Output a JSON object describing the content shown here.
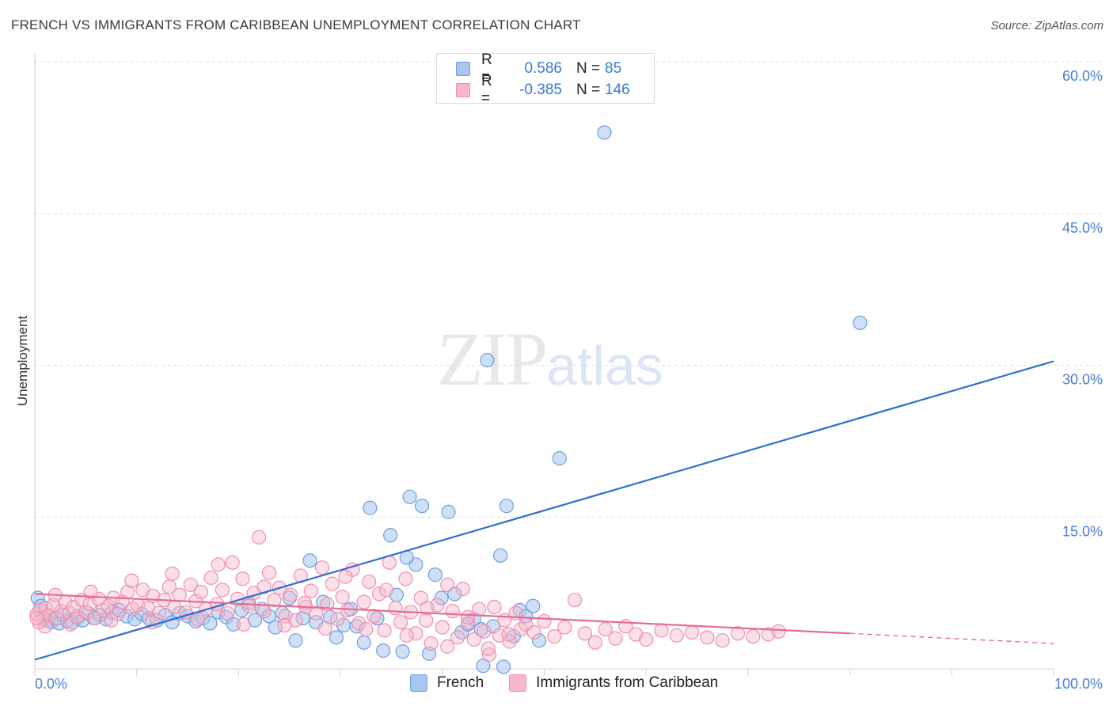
{
  "header": {
    "title": "FRENCH VS IMMIGRANTS FROM CARIBBEAN UNEMPLOYMENT CORRELATION CHART",
    "source": "Source: ZipAtlas.com"
  },
  "watermark": {
    "zip": "ZIP",
    "atlas": "atlas"
  },
  "legend": {
    "french": {
      "r_label": "R =",
      "r_value": "0.586",
      "n_label": "N =",
      "n_value": "85"
    },
    "caribbean": {
      "r_label": "R =",
      "r_value": "-0.385",
      "n_label": "N =",
      "n_value": "146"
    }
  },
  "colors": {
    "french_fill": "#a8c6ef",
    "french_stroke": "#6f9fdc",
    "french_line": "#2f6fcf",
    "caribbean_fill": "#f7b8cb",
    "caribbean_stroke": "#ee8fae",
    "caribbean_line": "#e86a94",
    "grid": "#dddddd",
    "tick_text": "#4a7fd4"
  },
  "chart_data": {
    "type": "scatter",
    "title": "FRENCH VS IMMIGRANTS FROM CARIBBEAN UNEMPLOYMENT CORRELATION CHART",
    "xlabel": "",
    "ylabel": "Unemployment",
    "xlim": [
      0,
      100
    ],
    "ylim": [
      0,
      60
    ],
    "x_ticks": [
      "0.0%",
      "100.0%"
    ],
    "y_ticks": [
      {
        "value": 15,
        "label": "15.0%"
      },
      {
        "value": 30,
        "label": "30.0%"
      },
      {
        "value": 45,
        "label": "45.0%"
      },
      {
        "value": 60,
        "label": "60.0%"
      }
    ],
    "grid": "horizontal dashed",
    "legend_position": "top-center",
    "series": [
      {
        "name": "French",
        "r": 0.586,
        "n": 85,
        "trend": {
          "x": [
            0,
            100
          ],
          "y": [
            0.9,
            30.4
          ]
        },
        "points": [
          [
            0.3,
            7.0
          ],
          [
            0.6,
            6.2
          ],
          [
            0.9,
            5.1
          ],
          [
            1.2,
            4.8
          ],
          [
            1.6,
            4.6
          ],
          [
            2.0,
            5.0
          ],
          [
            2.4,
            4.5
          ],
          [
            2.8,
            5.3
          ],
          [
            3.2,
            4.7
          ],
          [
            3.7,
            4.6
          ],
          [
            4.2,
            5.0
          ],
          [
            4.7,
            4.8
          ],
          [
            5.2,
            5.5
          ],
          [
            5.8,
            5.0
          ],
          [
            6.4,
            5.3
          ],
          [
            7.0,
            4.9
          ],
          [
            7.6,
            5.6
          ],
          [
            8.3,
            5.8
          ],
          [
            9.0,
            5.2
          ],
          [
            9.8,
            4.9
          ],
          [
            10.5,
            5.4
          ],
          [
            11.2,
            5.0
          ],
          [
            12.0,
            4.8
          ],
          [
            12.8,
            5.3
          ],
          [
            13.5,
            4.6
          ],
          [
            14.2,
            5.5
          ],
          [
            15.0,
            5.2
          ],
          [
            15.8,
            4.7
          ],
          [
            16.5,
            5.0
          ],
          [
            17.2,
            4.5
          ],
          [
            18.0,
            5.6
          ],
          [
            18.8,
            5.1
          ],
          [
            19.5,
            4.4
          ],
          [
            20.3,
            5.8
          ],
          [
            21.0,
            6.5
          ],
          [
            21.6,
            4.8
          ],
          [
            22.3,
            5.9
          ],
          [
            23.0,
            5.2
          ],
          [
            23.6,
            4.1
          ],
          [
            24.3,
            5.5
          ],
          [
            25.0,
            7.0
          ],
          [
            25.6,
            2.8
          ],
          [
            26.3,
            5.0
          ],
          [
            27.0,
            10.7
          ],
          [
            27.6,
            4.6
          ],
          [
            28.3,
            6.6
          ],
          [
            29.0,
            5.1
          ],
          [
            29.6,
            3.1
          ],
          [
            30.3,
            4.3
          ],
          [
            31.0,
            5.9
          ],
          [
            31.6,
            4.2
          ],
          [
            32.3,
            2.6
          ],
          [
            32.9,
            15.9
          ],
          [
            33.6,
            5.0
          ],
          [
            34.2,
            1.8
          ],
          [
            34.9,
            13.2
          ],
          [
            35.5,
            7.3
          ],
          [
            36.1,
            1.7
          ],
          [
            36.8,
            17.0
          ],
          [
            37.4,
            10.3
          ],
          [
            38.0,
            16.1
          ],
          [
            38.7,
            1.5
          ],
          [
            39.3,
            9.3
          ],
          [
            39.9,
            7.0
          ],
          [
            40.6,
            15.5
          ],
          [
            41.2,
            7.4
          ],
          [
            41.9,
            3.6
          ],
          [
            42.5,
            4.4
          ],
          [
            43.1,
            4.9
          ],
          [
            43.8,
            3.9
          ],
          [
            44.4,
            30.5
          ],
          [
            45.0,
            4.2
          ],
          [
            45.7,
            11.2
          ],
          [
            46.3,
            16.1
          ],
          [
            47.0,
            3.2
          ],
          [
            47.6,
            5.8
          ],
          [
            48.2,
            5.2
          ],
          [
            48.9,
            6.2
          ],
          [
            49.5,
            2.8
          ],
          [
            44.0,
            0.3
          ],
          [
            36.5,
            11.0
          ],
          [
            46.0,
            0.2
          ],
          [
            55.9,
            53.0
          ],
          [
            51.5,
            20.8
          ],
          [
            81.0,
            34.2
          ]
        ]
      },
      {
        "name": "Immigrants from Caribbean",
        "r": -0.385,
        "n": 146,
        "trend": {
          "x": [
            0,
            80
          ],
          "y": [
            7.4,
            3.5
          ]
        },
        "trend_dashed": {
          "x": [
            80,
            100
          ],
          "y": [
            3.5,
            2.5
          ]
        },
        "points": [
          [
            0.2,
            5.4
          ],
          [
            0.5,
            5.8
          ],
          [
            0.8,
            4.9
          ],
          [
            1.1,
            6.0
          ],
          [
            1.4,
            5.3
          ],
          [
            1.8,
            6.3
          ],
          [
            2.2,
            5.0
          ],
          [
            2.6,
            5.7
          ],
          [
            3.0,
            6.6
          ],
          [
            3.4,
            5.5
          ],
          [
            3.8,
            6.1
          ],
          [
            4.2,
            5.2
          ],
          [
            4.6,
            6.8
          ],
          [
            5.0,
            5.6
          ],
          [
            5.4,
            6.4
          ],
          [
            5.9,
            5.0
          ],
          [
            6.3,
            6.9
          ],
          [
            6.7,
            5.8
          ],
          [
            7.2,
            6.2
          ],
          [
            7.7,
            7.0
          ],
          [
            8.1,
            5.4
          ],
          [
            8.6,
            6.6
          ],
          [
            9.1,
            7.6
          ],
          [
            9.6,
            5.9
          ],
          [
            10.1,
            6.3
          ],
          [
            10.6,
            7.8
          ],
          [
            11.1,
            6.0
          ],
          [
            11.6,
            7.2
          ],
          [
            12.2,
            5.5
          ],
          [
            12.7,
            6.8
          ],
          [
            13.2,
            8.1
          ],
          [
            13.7,
            6.1
          ],
          [
            14.2,
            7.3
          ],
          [
            14.8,
            5.6
          ],
          [
            15.3,
            8.3
          ],
          [
            15.8,
            6.7
          ],
          [
            16.3,
            7.6
          ],
          [
            16.8,
            5.9
          ],
          [
            17.3,
            9.0
          ],
          [
            17.9,
            6.4
          ],
          [
            18.4,
            7.8
          ],
          [
            18.9,
            5.5
          ],
          [
            19.4,
            10.5
          ],
          [
            19.9,
            6.9
          ],
          [
            20.4,
            8.9
          ],
          [
            21.0,
            6.2
          ],
          [
            21.5,
            7.5
          ],
          [
            22.0,
            13.0
          ],
          [
            22.5,
            5.7
          ],
          [
            23.0,
            9.5
          ],
          [
            23.5,
            6.8
          ],
          [
            24.0,
            8.0
          ],
          [
            24.6,
            5.2
          ],
          [
            25.1,
            7.3
          ],
          [
            25.6,
            4.8
          ],
          [
            26.1,
            9.2
          ],
          [
            26.6,
            6.1
          ],
          [
            27.1,
            7.7
          ],
          [
            27.6,
            5.5
          ],
          [
            28.2,
            10.0
          ],
          [
            28.7,
            6.4
          ],
          [
            29.2,
            8.4
          ],
          [
            29.7,
            4.9
          ],
          [
            30.2,
            7.1
          ],
          [
            30.7,
            5.8
          ],
          [
            31.2,
            9.8
          ],
          [
            31.8,
            4.5
          ],
          [
            32.3,
            6.6
          ],
          [
            32.8,
            8.6
          ],
          [
            33.3,
            5.2
          ],
          [
            33.8,
            7.4
          ],
          [
            34.3,
            3.8
          ],
          [
            34.8,
            10.5
          ],
          [
            35.4,
            6.0
          ],
          [
            35.9,
            4.6
          ],
          [
            36.4,
            8.9
          ],
          [
            36.9,
            5.6
          ],
          [
            37.4,
            3.5
          ],
          [
            37.9,
            7.0
          ],
          [
            38.4,
            4.8
          ],
          [
            38.9,
            2.5
          ],
          [
            39.5,
            6.3
          ],
          [
            40.0,
            4.1
          ],
          [
            40.5,
            8.3
          ],
          [
            41.0,
            5.7
          ],
          [
            41.5,
            3.1
          ],
          [
            42.0,
            7.9
          ],
          [
            42.5,
            4.5
          ],
          [
            43.1,
            2.9
          ],
          [
            43.6,
            5.9
          ],
          [
            44.1,
            3.7
          ],
          [
            44.6,
            1.4
          ],
          [
            45.1,
            6.1
          ],
          [
            45.6,
            3.3
          ],
          [
            46.1,
            4.8
          ],
          [
            46.6,
            2.7
          ],
          [
            47.2,
            5.5
          ],
          [
            47.7,
            3.9
          ],
          [
            48.2,
            4.4
          ],
          [
            49.0,
            3.6
          ],
          [
            50.0,
            4.7
          ],
          [
            51.0,
            3.2
          ],
          [
            52.0,
            4.1
          ],
          [
            53.0,
            6.8
          ],
          [
            54.0,
            3.5
          ],
          [
            55.0,
            2.6
          ],
          [
            56.0,
            3.9
          ],
          [
            57.0,
            3.0
          ],
          [
            58.0,
            4.2
          ],
          [
            59.0,
            3.4
          ],
          [
            60.0,
            2.9
          ],
          [
            61.5,
            3.8
          ],
          [
            63.0,
            3.3
          ],
          [
            64.5,
            3.6
          ],
          [
            66.0,
            3.1
          ],
          [
            67.5,
            2.8
          ],
          [
            69.0,
            3.5
          ],
          [
            70.5,
            3.2
          ],
          [
            72.0,
            3.4
          ],
          [
            73.0,
            3.7
          ],
          [
            1.0,
            4.2
          ],
          [
            2.0,
            7.3
          ],
          [
            3.5,
            4.4
          ],
          [
            5.5,
            7.6
          ],
          [
            7.5,
            4.8
          ],
          [
            9.5,
            8.7
          ],
          [
            11.5,
            4.6
          ],
          [
            13.5,
            9.4
          ],
          [
            16.0,
            4.9
          ],
          [
            18.0,
            10.3
          ],
          [
            20.5,
            4.4
          ],
          [
            22.5,
            8.1
          ],
          [
            24.5,
            4.3
          ],
          [
            26.5,
            6.5
          ],
          [
            28.5,
            4.0
          ],
          [
            30.5,
            9.1
          ],
          [
            32.5,
            3.9
          ],
          [
            34.5,
            7.8
          ],
          [
            36.5,
            3.3
          ],
          [
            38.5,
            6.0
          ],
          [
            40.5,
            2.2
          ],
          [
            42.5,
            5.1
          ],
          [
            44.5,
            2.0
          ],
          [
            46.5,
            3.4
          ],
          [
            0.4,
            4.6
          ],
          [
            0.2,
            5.0
          ]
        ]
      }
    ]
  },
  "bottom_legend": {
    "french": "French",
    "caribbean": "Immigrants from Caribbean"
  }
}
